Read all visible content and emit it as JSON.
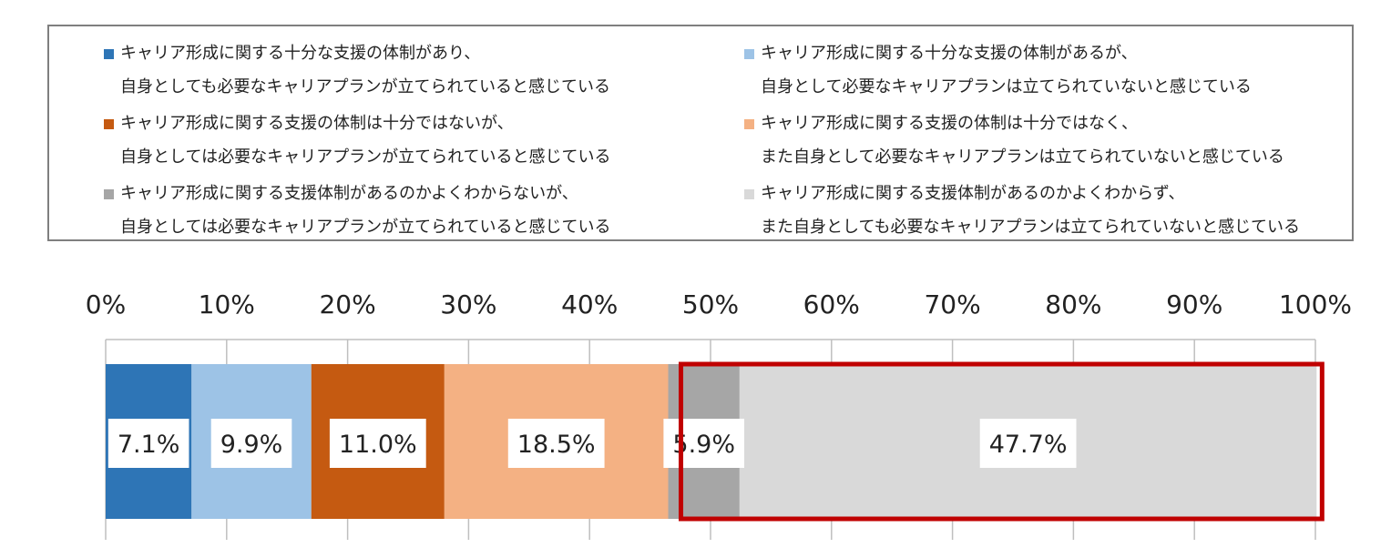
{
  "chart_data": {
    "type": "bar",
    "orientation": "horizontal-stacked-100",
    "title": "",
    "xlabel": "",
    "ylabel": "",
    "xlim": [
      0,
      100
    ],
    "tick_labels": [
      "0%",
      "10%",
      "20%",
      "30%",
      "40%",
      "50%",
      "60%",
      "70%",
      "80%",
      "90%",
      "100%"
    ],
    "legend_position": "top",
    "series": [
      {
        "name_line1": "キャリア形成に関する十分な支援の体制があり、",
        "name_line2": "自身としても必要なキャリアプランが立てられていると感じている",
        "value": 7.1,
        "label": "7.1%",
        "color": "#2e75b6"
      },
      {
        "name_line1": "キャリア形成に関する十分な支援の体制があるが、",
        "name_line2": "自身として必要なキャリアプランは立てられていないと感じている",
        "value": 9.9,
        "label": "9.9%",
        "color": "#9dc3e6"
      },
      {
        "name_line1": "キャリア形成に関する支援の体制は十分ではないが、",
        "name_line2": "自身としては必要なキャリアプランが立てられていると感じている",
        "value": 11.0,
        "label": "11.0%",
        "color": "#c55a11"
      },
      {
        "name_line1": "キャリア形成に関する支援の体制は十分ではなく、",
        "name_line2": "また自身として必要なキャリアプランは立てられていないと感じている",
        "value": 18.5,
        "label": "18.5%",
        "color": "#f4b183"
      },
      {
        "name_line1": "キャリア形成に関する支援体制があるのかよくわからないが、",
        "name_line2": "自身としては必要なキャリアプランが立てられていると感じている",
        "value": 5.9,
        "label": "5.9%",
        "color": "#a6a6a6"
      },
      {
        "name_line1": "キャリア形成に関する支援体制があるのかよくわからず、",
        "name_line2": "また自身としても必要なキャリアプランは立てられていないと感じている",
        "value": 47.7,
        "label": "47.7%",
        "color": "#d9d9d9"
      }
    ],
    "highlight": {
      "from_series": 4,
      "to_series": 5,
      "color": "#c00000"
    }
  }
}
